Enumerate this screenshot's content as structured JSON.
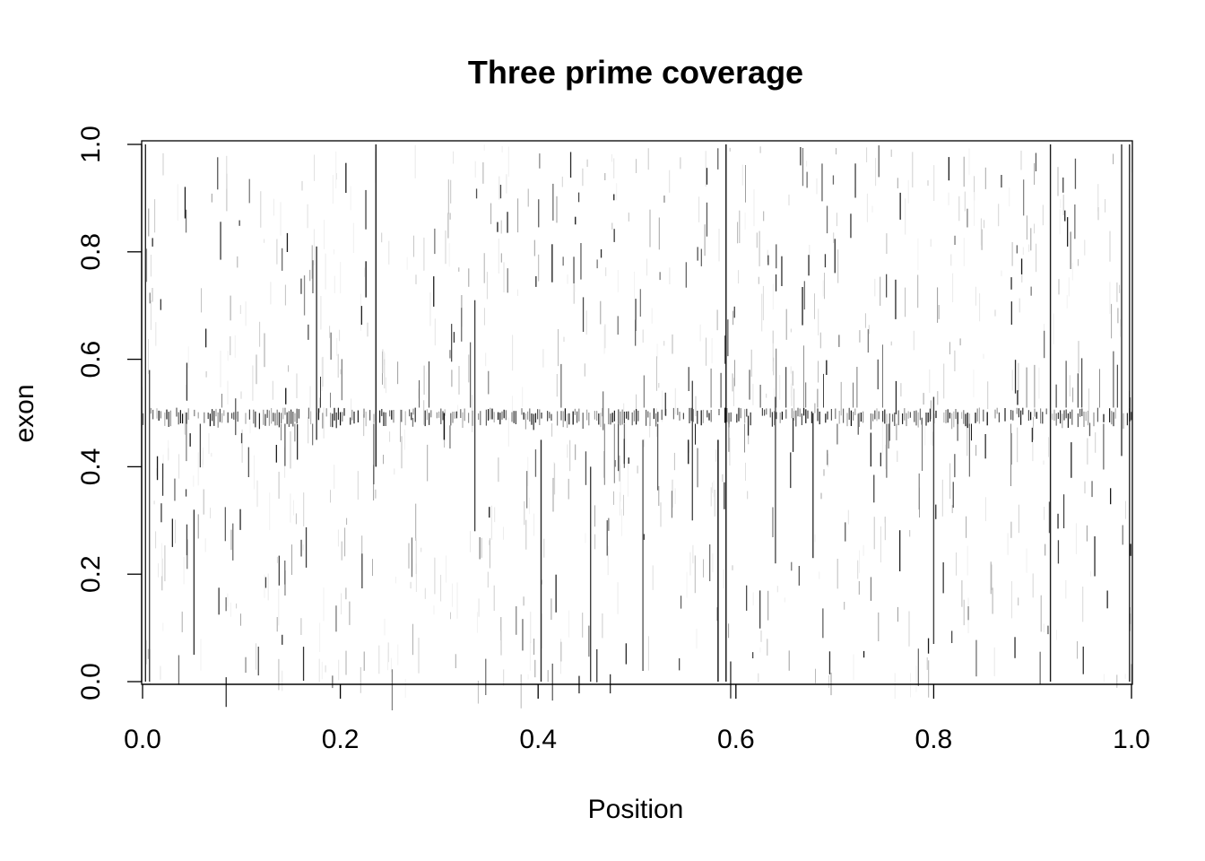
{
  "chart_data": {
    "type": "heatmap",
    "title": "Three prime coverage",
    "xlabel": "Position",
    "ylabel": "exon",
    "xlim": [
      0,
      1
    ],
    "ylim": [
      0,
      1
    ],
    "x_ticks": [
      {
        "value": 0.0,
        "label": "0.0"
      },
      {
        "value": 0.2,
        "label": "0.2"
      },
      {
        "value": 0.4,
        "label": "0.4"
      },
      {
        "value": 0.6,
        "label": "0.6"
      },
      {
        "value": 0.8,
        "label": "0.8"
      },
      {
        "value": 1.0,
        "label": "1.0"
      }
    ],
    "y_ticks": [
      {
        "value": 0.0,
        "label": "0.0"
      },
      {
        "value": 0.2,
        "label": "0.2"
      },
      {
        "value": 0.4,
        "label": "0.4"
      },
      {
        "value": 0.6,
        "label": "0.6"
      },
      {
        "value": 0.8,
        "label": "0.8"
      },
      {
        "value": 1.0,
        "label": "1.0"
      }
    ],
    "grid": false,
    "colorscale": [
      "#ffffff",
      "#000000"
    ],
    "dense_band_y": [
      0.48,
      0.51
    ],
    "strong_columns": [
      {
        "x": 0.003,
        "y": [
          0.0,
          1.0
        ],
        "intensity": 0.85
      },
      {
        "x": 0.007,
        "y": [
          0.0,
          0.58
        ],
        "intensity": 0.7
      },
      {
        "x": 0.052,
        "y": [
          0.05,
          0.32
        ],
        "intensity": 0.8
      },
      {
        "x": 0.176,
        "y": [
          0.45,
          0.81
        ],
        "intensity": 0.8
      },
      {
        "x": 0.236,
        "y": [
          0.4,
          1.0
        ],
        "intensity": 0.9
      },
      {
        "x": 0.305,
        "y": [
          0.45,
          0.5
        ],
        "intensity": 0.95
      },
      {
        "x": 0.336,
        "y": [
          0.28,
          0.71
        ],
        "intensity": 0.75
      },
      {
        "x": 0.403,
        "y": [
          0.0,
          0.45
        ],
        "intensity": 0.85
      },
      {
        "x": 0.453,
        "y": [
          0.0,
          0.4
        ],
        "intensity": 0.75
      },
      {
        "x": 0.506,
        "y": [
          0.02,
          0.45
        ],
        "intensity": 0.65
      },
      {
        "x": 0.556,
        "y": [
          0.3,
          0.56
        ],
        "intensity": 0.7
      },
      {
        "x": 0.582,
        "y": [
          0.0,
          0.45
        ],
        "intensity": 0.95
      },
      {
        "x": 0.59,
        "y": [
          0.0,
          1.0
        ],
        "intensity": 0.95
      },
      {
        "x": 0.64,
        "y": [
          0.22,
          0.53
        ],
        "intensity": 0.7
      },
      {
        "x": 0.678,
        "y": [
          0.23,
          0.5
        ],
        "intensity": 0.8
      },
      {
        "x": 0.8,
        "y": [
          0.07,
          0.53
        ],
        "intensity": 0.75
      },
      {
        "x": 0.918,
        "y": [
          0.0,
          1.0
        ],
        "intensity": 0.9
      },
      {
        "x": 0.99,
        "y": [
          0.42,
          1.0
        ],
        "intensity": 0.8
      },
      {
        "x": 0.998,
        "y": [
          0.0,
          1.0
        ],
        "intensity": 0.85
      }
    ]
  }
}
